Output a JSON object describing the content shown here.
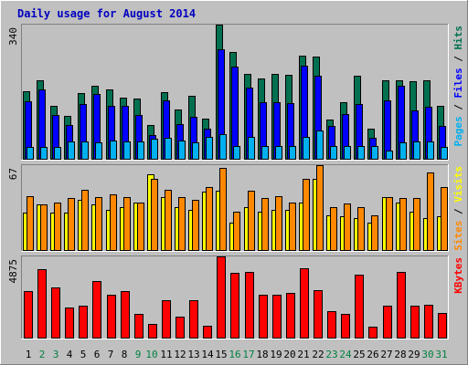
{
  "chart_data": {
    "type": "bar",
    "title": "Daily usage for August 2014",
    "categories": [
      "1",
      "2",
      "3",
      "4",
      "5",
      "6",
      "7",
      "8",
      "9",
      "10",
      "11",
      "12",
      "13",
      "14",
      "15",
      "16",
      "17",
      "18",
      "19",
      "20",
      "21",
      "22",
      "23",
      "24",
      "25",
      "26",
      "27",
      "28",
      "29",
      "30",
      "31"
    ],
    "weekend_days": [
      "2",
      "3",
      "9",
      "10",
      "16",
      "17",
      "23",
      "24",
      "30",
      "31"
    ],
    "colors": {
      "background": "#c0c0c0",
      "title": "#0000c0",
      "hits": "#007050",
      "files": "#0000ff",
      "pages": "#00b0f0",
      "visits": "#ffff00",
      "sites": "#ff8800",
      "kbytes": "#ff0000",
      "weekday_label": "#000000",
      "weekend_label": "#008040"
    },
    "panels": [
      {
        "id": "hits-files-pages",
        "ymax_label": "340",
        "ymax": 340,
        "legend": [
          {
            "text": "Pages",
            "color": "#00b0f0"
          },
          {
            "text": " / ",
            "color": "#000000"
          },
          {
            "text": "Files",
            "color": "#0000ff"
          },
          {
            "text": " / ",
            "color": "#000000"
          },
          {
            "text": "Hits",
            "color": "#007050"
          }
        ],
        "series": [
          {
            "key": "hits",
            "values": [
              173,
              200,
              135,
              110,
              168,
              185,
              178,
              157,
              153,
              88,
              170,
              127,
              160,
              104,
              340,
              272,
              216,
              204,
              217,
              214,
              263,
              260,
              100,
              144,
              211,
              77,
              201,
              201,
              197,
              200,
              135
            ]
          },
          {
            "key": "files",
            "values": [
              148,
              177,
              113,
              87,
              140,
              166,
              135,
              135,
              112,
              62,
              149,
              89,
              108,
              77,
              278,
              235,
              182,
              145,
              144,
              142,
              236,
              211,
              84,
              114,
              141,
              54,
              149,
              185,
              125,
              133,
              85
            ]
          },
          {
            "key": "pages",
            "values": [
              32,
              32,
              32,
              45,
              46,
              43,
              49,
              45,
              45,
              53,
              54,
              48,
              43,
              57,
              64,
              34,
              57,
              35,
              34,
              35,
              58,
              73,
              35,
              34,
              34,
              34,
              22,
              43,
              45,
              46,
              32
            ]
          }
        ]
      },
      {
        "id": "visits-sites",
        "ymax_label": "67",
        "ymax": 67,
        "legend": [
          {
            "text": "Sites",
            "color": "#ff8800"
          },
          {
            "text": " / ",
            "color": "#000000"
          },
          {
            "text": "Visits",
            "color": "#ffff00"
          }
        ],
        "series": [
          {
            "key": "visits",
            "values": [
              30,
              36,
              30,
              30,
              40,
              36,
              32,
              34,
              38,
              60,
              42,
              34,
              32,
              46,
              47,
              22,
              34,
              31,
              32,
              32,
              38,
              56,
              28,
              27,
              26,
              22,
              42,
              38,
              31,
              26,
              27
            ]
          },
          {
            "key": "sites",
            "values": [
              43,
              36,
              38,
              41,
              48,
              42,
              44,
              42,
              38,
              56,
              48,
              42,
              40,
              50,
              65,
              31,
              47,
              41,
              43,
              38,
              56,
              67,
              34,
              37,
              34,
              28,
              42,
              41,
              41,
              61,
              50
            ]
          }
        ]
      },
      {
        "id": "kbytes",
        "ymax_label": "4875",
        "ymax": 4875,
        "legend": [
          {
            "text": "KBytes",
            "color": "#ff0000"
          }
        ],
        "series": [
          {
            "key": "kbytes",
            "values": [
              2820,
              4090,
              3055,
              1830,
              1975,
              3425,
              2585,
              2815,
              1460,
              890,
              2290,
              1295,
              2290,
              770,
              4875,
              3885,
              3960,
              2585,
              2590,
              2705,
              4150,
              2880,
              1635,
              1460,
              3800,
              700,
              1930,
              3960,
              1970,
              2015,
              1540
            ]
          }
        ]
      }
    ]
  }
}
